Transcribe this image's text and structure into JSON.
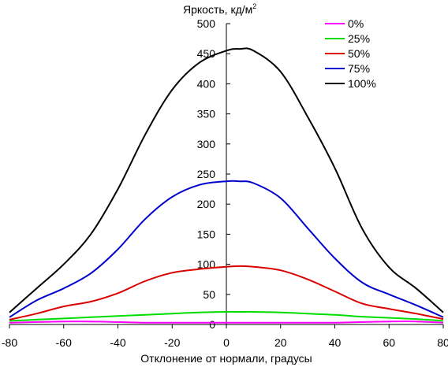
{
  "chart_data": {
    "type": "line",
    "title": "",
    "ylabel_main": "Яркость, кд/м",
    "ylabel_sup": "2",
    "xlabel": "Отклонение от нормали, градусы",
    "xlim": [
      -80,
      80
    ],
    "ylim": [
      0,
      500
    ],
    "x_ticks": [
      -80,
      -60,
      -40,
      -20,
      0,
      20,
      40,
      60,
      80
    ],
    "y_ticks": [
      0,
      50,
      100,
      150,
      200,
      250,
      300,
      350,
      400,
      450,
      500
    ],
    "x_tick_labels": [
      "-80",
      "-60",
      "-40",
      "-20",
      "0",
      "20",
      "40",
      "60",
      "80"
    ],
    "y_tick_labels": [
      "0",
      "50",
      "100",
      "150",
      "200",
      "250",
      "300",
      "350",
      "400",
      "450",
      "500"
    ],
    "grid": false,
    "legend_position": "top-right",
    "x": [
      -80,
      -70,
      -60,
      -50,
      -40,
      -30,
      -20,
      -10,
      0,
      5,
      10,
      20,
      30,
      40,
      50,
      60,
      70,
      80
    ],
    "series": [
      {
        "name": "0%",
        "color": "#ff00ff",
        "values": [
          3,
          4,
          5,
          5,
          4,
          3,
          3,
          3,
          3,
          3,
          3,
          3,
          3,
          3,
          4,
          5,
          5,
          3
        ]
      },
      {
        "name": "25%",
        "color": "#00dd00",
        "values": [
          6,
          8,
          10,
          12,
          14,
          16,
          18,
          20,
          21,
          21,
          21,
          20,
          18,
          16,
          13,
          11,
          9,
          6
        ]
      },
      {
        "name": "50%",
        "color": "#dd0000",
        "values": [
          8,
          18,
          30,
          38,
          52,
          72,
          86,
          92,
          96,
          97,
          96,
          90,
          75,
          55,
          35,
          26,
          18,
          9
        ]
      },
      {
        "name": "75%",
        "color": "#0000cc",
        "values": [
          12,
          40,
          60,
          85,
          125,
          175,
          212,
          232,
          238,
          238,
          235,
          210,
          160,
          110,
          70,
          50,
          32,
          12
        ]
      },
      {
        "name": "100%",
        "color": "#000000",
        "values": [
          20,
          60,
          100,
          150,
          225,
          315,
          390,
          435,
          455,
          458,
          455,
          420,
          345,
          260,
          160,
          95,
          60,
          20
        ]
      }
    ]
  }
}
